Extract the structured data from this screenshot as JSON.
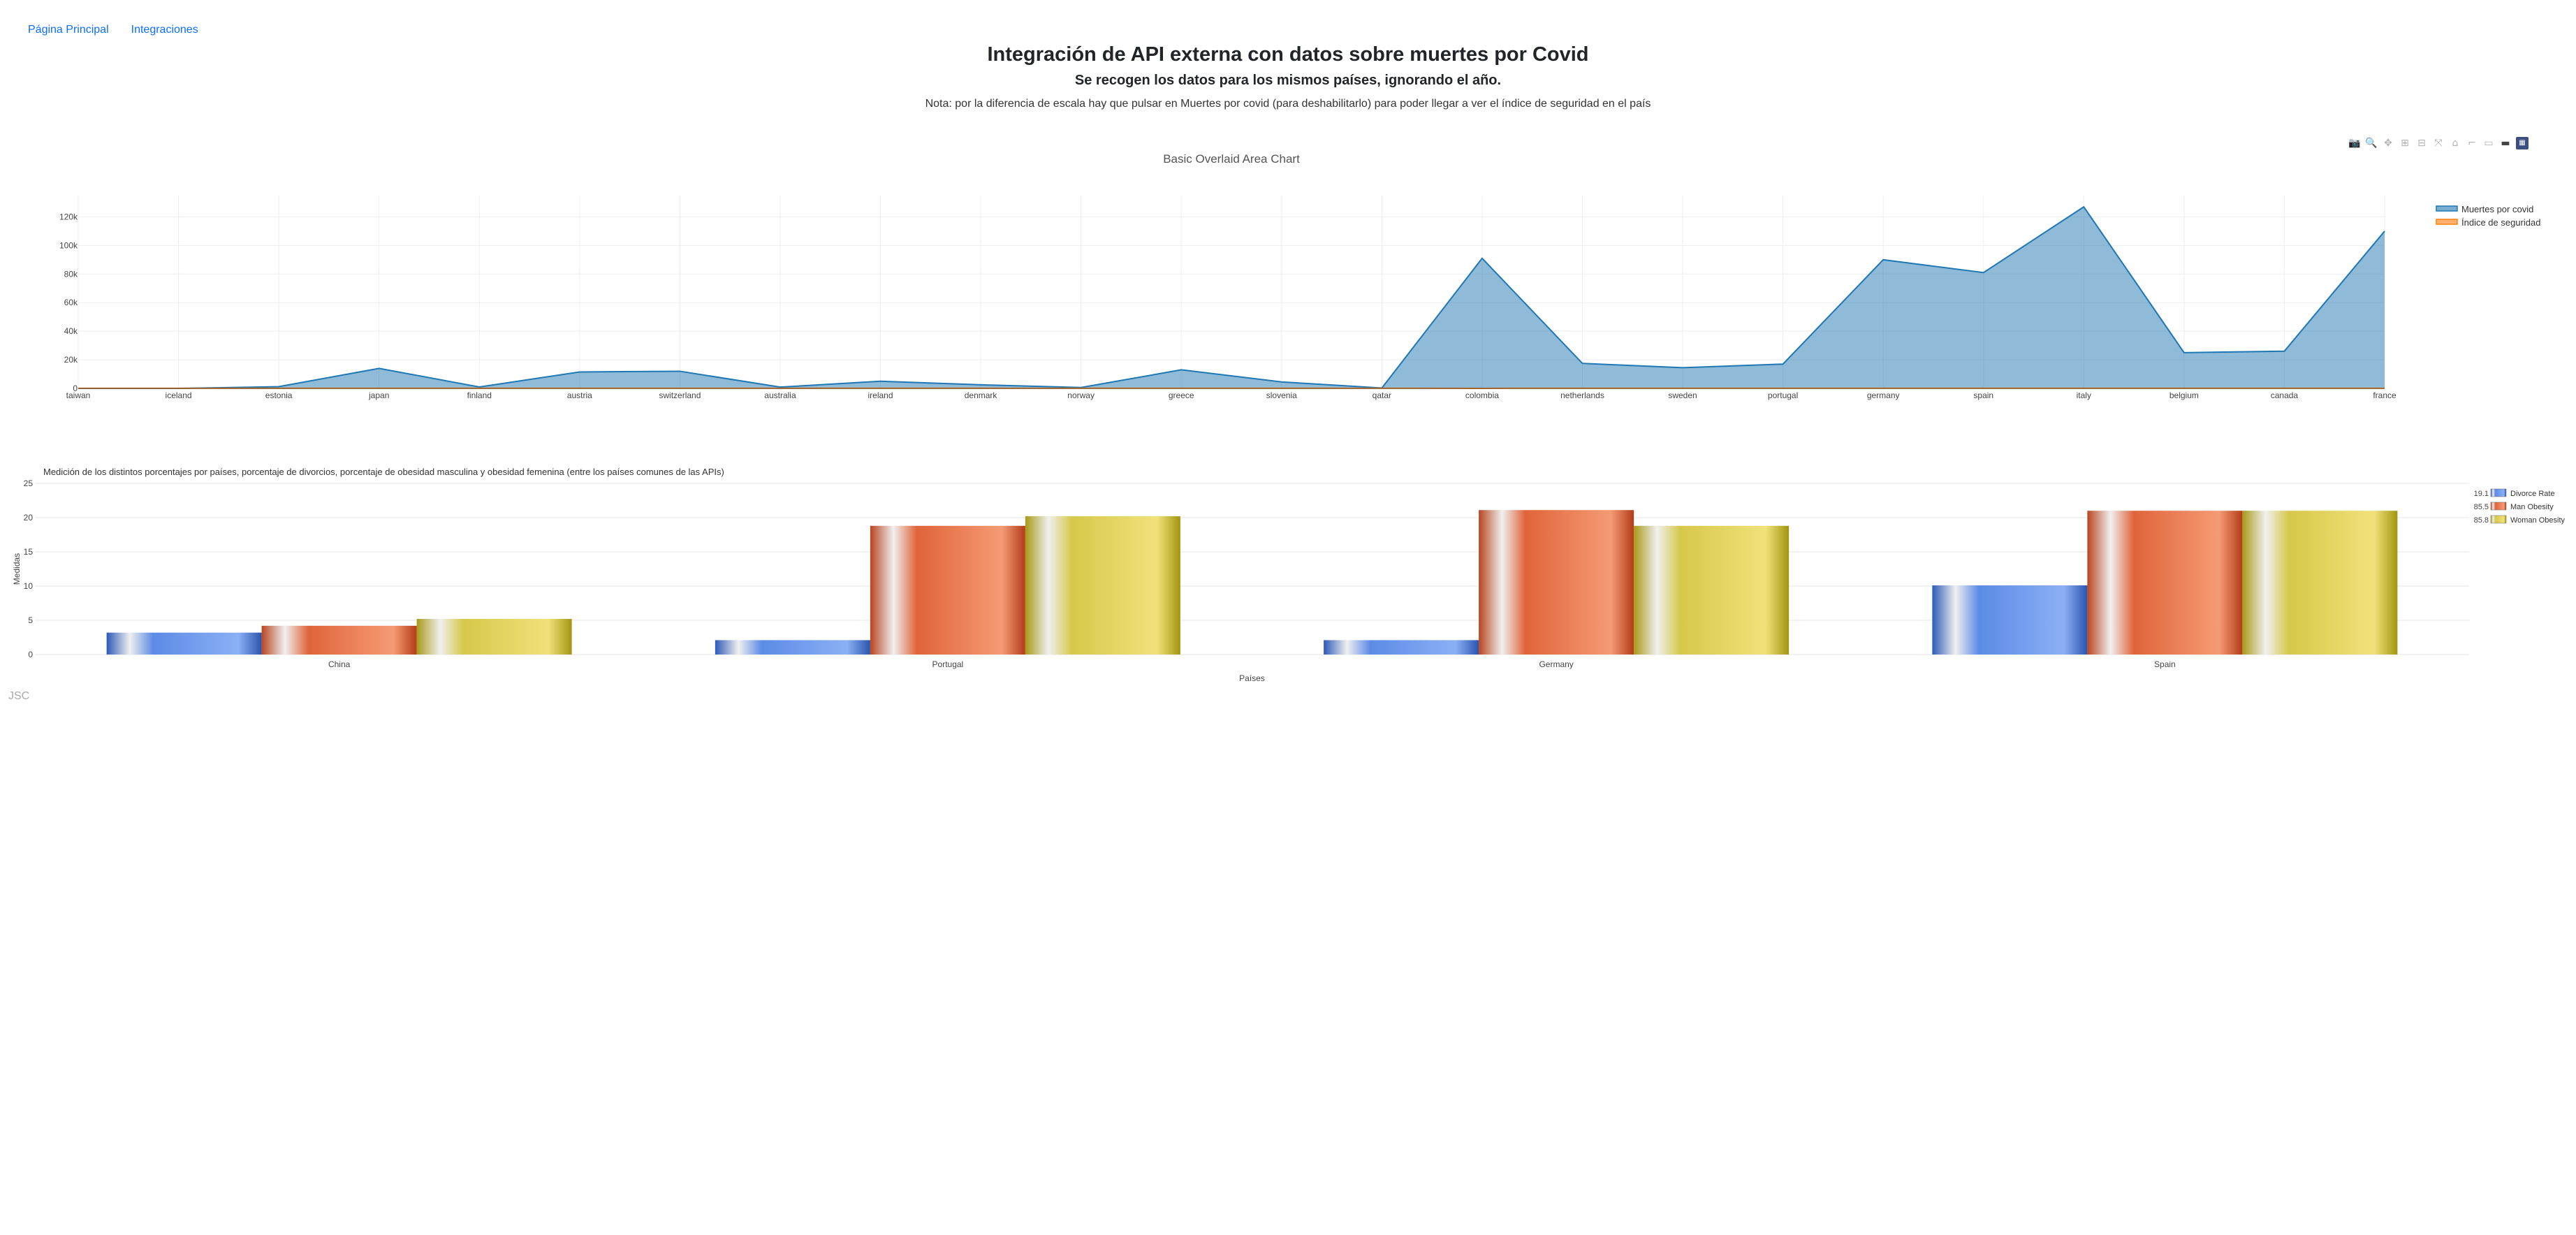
{
  "nav": {
    "home": "Página Principal",
    "integrations": "Integraciones"
  },
  "header": {
    "title": "Integración de API externa con datos sobre muertes por Covid",
    "subtitle": "Se recogen los datos para los mismos países, ignorando el año.",
    "note": "Nota: por la diferencia de escala hay que pulsar en Muertes por covid (para deshabilitarlo) para poder llegar a ver el índice de seguridad en el país"
  },
  "footer": {
    "brand": "JSC"
  },
  "modebar": [
    "camera-icon",
    "zoom-icon",
    "pan-icon",
    "zoom-in-icon",
    "zoom-out-icon",
    "autoscale-icon",
    "home-icon",
    "spike-lines-icon",
    "hover-closest-icon",
    "hover-compare-icon",
    "plotly-logo-icon"
  ],
  "chart_data": [
    {
      "type": "area",
      "title": "Basic Overlaid Area Chart",
      "xlabel": "",
      "ylabel": "",
      "ylim": [
        0,
        130000
      ],
      "yticks": [
        0,
        20000,
        40000,
        60000,
        80000,
        100000,
        120000
      ],
      "ytick_labels": [
        "0",
        "20k",
        "40k",
        "60k",
        "80k",
        "100k",
        "120k"
      ],
      "grid": true,
      "legend": "top-right",
      "categories": [
        "taiwan",
        "iceland",
        "estonia",
        "japan",
        "finland",
        "austria",
        "switzerland",
        "australia",
        "ireland",
        "denmark",
        "norway",
        "greece",
        "slovenia",
        "qatar",
        "colombia",
        "netherlands",
        "sweden",
        "portugal",
        "germany",
        "spain",
        "italy",
        "belgium",
        "canada",
        "france"
      ],
      "series": [
        {
          "name": "Muertes por covid",
          "color": "#1f77b4",
          "values": [
            10,
            29,
            1200,
            14000,
            1000,
            11500,
            12000,
            900,
            5000,
            2500,
            600,
            13000,
            4500,
            250,
            91000,
            17500,
            14500,
            17000,
            90000,
            81000,
            127000,
            25000,
            26000,
            110000
          ]
        },
        {
          "name": "Índice de seguridad",
          "color": "#ff7f0e",
          "values": [
            60,
            75,
            70,
            78,
            72,
            74,
            78,
            55,
            55,
            73,
            72,
            55,
            78,
            85,
            28,
            60,
            50,
            60,
            58,
            59,
            45,
            45,
            58,
            45
          ]
        }
      ]
    },
    {
      "type": "bar",
      "title": "Medición de los distintos porcentajes por países, porcentaje de divorcios, porcentaje de obesidad masculina y obesidad femenina (entre los países comunes de las APIs)",
      "xlabel": "Países",
      "ylabel": "Medidas",
      "ylim": [
        0,
        25
      ],
      "yticks": [
        0,
        5,
        10,
        15,
        20,
        25
      ],
      "grid": true,
      "legend": "top-right",
      "categories": [
        "China",
        "Portugal",
        "Germany",
        "Spain"
      ],
      "series": [
        {
          "name": "Divorce Rate",
          "legend_value": "19.1",
          "color": "#4a78d6",
          "values": [
            3.2,
            2.1,
            2.1,
            10.1
          ]
        },
        {
          "name": "Man Obesity",
          "legend_value": "85.5",
          "color": "#e0643a",
          "values": [
            4.2,
            18.8,
            21.1,
            21.0
          ]
        },
        {
          "name": "Woman Obesity",
          "legend_value": "85.8",
          "color": "#d6c84a",
          "values": [
            5.2,
            20.2,
            18.8,
            21.0
          ]
        }
      ]
    }
  ]
}
